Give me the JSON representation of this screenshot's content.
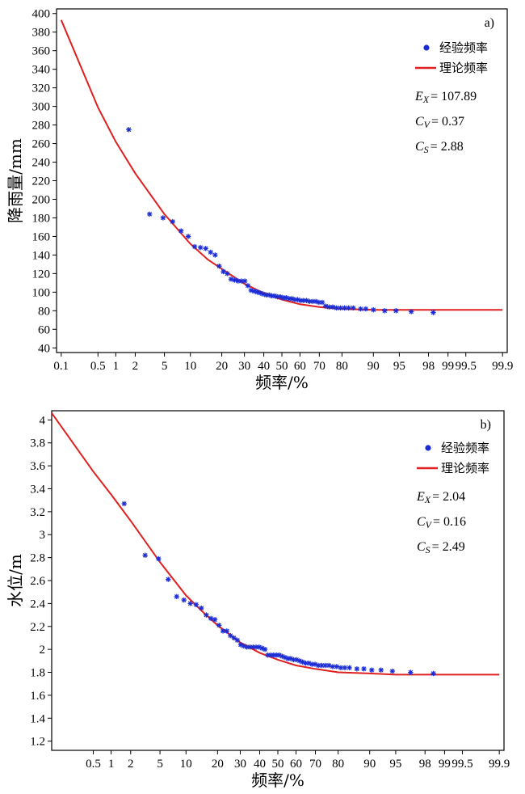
{
  "chart_data": [
    {
      "type": "scatter",
      "panel_label": "a)",
      "xscale": "probability",
      "x_ticks": [
        0.1,
        0.5,
        1,
        2,
        5,
        10,
        20,
        30,
        40,
        50,
        60,
        70,
        80,
        90,
        95,
        98,
        99,
        99.5,
        99.9
      ],
      "x_tick_labels": [
        "0.1",
        "0.5",
        "1",
        "2",
        "5",
        "10",
        "20",
        "30",
        "40",
        "50",
        "60",
        "70",
        "80",
        "90",
        "95",
        "98",
        "99",
        "99.5",
        "99.9"
      ],
      "xlim": [
        0.08,
        99.92
      ],
      "xlabel": "频率/%",
      "ylabel": "降雨量/mm",
      "ylim": [
        35,
        405
      ],
      "y_ticks": [
        40,
        60,
        80,
        100,
        120,
        140,
        160,
        180,
        200,
        220,
        240,
        260,
        280,
        300,
        320,
        340,
        360,
        380,
        400
      ],
      "y_tick_labels": [
        "40",
        "60",
        "80",
        "100",
        "120",
        "140",
        "160",
        "180",
        "200",
        "220",
        "240",
        "260",
        "280",
        "300",
        "320",
        "340",
        "360",
        "380",
        "400"
      ],
      "legend": [
        {
          "label": "经验频率",
          "kind": "points",
          "color": "#1a2bd6"
        },
        {
          "label": "理论频率",
          "kind": "line",
          "color": "#e02020"
        }
      ],
      "legend_position": "top-right",
      "stats": [
        {
          "sym": "E",
          "sub": "X",
          "value": "= 107.89"
        },
        {
          "sym": "C",
          "sub": "V",
          "value": "= 0.37"
        },
        {
          "sym": "C",
          "sub": "S",
          "value": "= 2.88"
        }
      ],
      "series": [
        {
          "name": "经验频率",
          "kind": "scatter",
          "color": "#1a2bd6",
          "x": [
            1.6,
            3.2,
            4.8,
            6.3,
            7.9,
            9.5,
            11.1,
            12.7,
            14.3,
            15.9,
            17.5,
            19.0,
            20.6,
            22.2,
            23.8,
            25.4,
            27.0,
            28.6,
            30.2,
            31.7,
            33.3,
            34.9,
            36.5,
            38.1,
            39.7,
            41.3,
            42.9,
            44.4,
            46.0,
            47.6,
            49.2,
            50.8,
            52.4,
            54.0,
            55.6,
            57.1,
            58.7,
            60.3,
            61.9,
            63.5,
            65.1,
            66.7,
            68.3,
            69.8,
            71.4,
            73.0,
            74.6,
            76.2,
            77.8,
            79.4,
            81.0,
            82.5,
            84.1,
            86.5,
            88.0,
            90.0,
            92.5,
            94.5,
            96.5,
            98.3
          ],
          "y": [
            275,
            184,
            180,
            176,
            166,
            160,
            149,
            148,
            147,
            143,
            140,
            128,
            122,
            120,
            114,
            113,
            112,
            112,
            112,
            107,
            102,
            101,
            100,
            99,
            98,
            97,
            97,
            96,
            96,
            95,
            95,
            94,
            94,
            93,
            93,
            92,
            92,
            91,
            91,
            91,
            90,
            90,
            90,
            89,
            89,
            85,
            84,
            84,
            83,
            83,
            83,
            83,
            83,
            82,
            82,
            81,
            80,
            80,
            79,
            78
          ]
        },
        {
          "name": "理论频率",
          "kind": "line",
          "color": "#e02020",
          "x": [
            0.1,
            0.5,
            1,
            2,
            5,
            10,
            15,
            20,
            30,
            40,
            50,
            60,
            70,
            80,
            90,
            95,
            99,
            99.9
          ],
          "y": [
            393,
            299,
            262,
            228,
            184,
            152,
            135,
            125,
            109,
            99,
            92,
            87,
            84,
            82,
            81,
            81,
            81,
            81
          ]
        }
      ]
    },
    {
      "type": "scatter",
      "panel_label": "b)",
      "xscale": "probability",
      "x_ticks": [
        0.5,
        1,
        2,
        5,
        10,
        20,
        30,
        40,
        50,
        60,
        70,
        80,
        90,
        95,
        98,
        99,
        99.5,
        99.9
      ],
      "x_tick_labels": [
        "0.5",
        "1",
        "2",
        "5",
        "10",
        "20",
        "30",
        "40",
        "50",
        "60",
        "70",
        "80",
        "90",
        "95",
        "98",
        "99",
        "99.5",
        "99.9"
      ],
      "xlim": [
        0.08,
        99.92
      ],
      "xlabel": "频率/%",
      "ylabel": "水位/m",
      "ylim": [
        1.12,
        4.08
      ],
      "y_ticks": [
        1.2,
        1.4,
        1.6,
        1.8,
        2.0,
        2.2,
        2.4,
        2.6,
        2.8,
        3.0,
        3.2,
        3.4,
        3.6,
        3.8,
        4.0
      ],
      "y_tick_labels": [
        "1.2",
        "1.4",
        "1.6",
        "1.8",
        "2",
        "2.2",
        "2.4",
        "2.6",
        "2.8",
        "3",
        "3.2",
        "3.4",
        "3.6",
        "3.8",
        "4"
      ],
      "legend": [
        {
          "label": "经验频率",
          "kind": "points",
          "color": "#1a2bd6"
        },
        {
          "label": "理论频率",
          "kind": "line",
          "color": "#e02020"
        }
      ],
      "legend_position": "top-right",
      "stats": [
        {
          "sym": "E",
          "sub": "X",
          "value": "= 2.04"
        },
        {
          "sym": "C",
          "sub": "V",
          "value": "= 0.16"
        },
        {
          "sym": "C",
          "sub": "S",
          "value": "= 2.49"
        }
      ],
      "series": [
        {
          "name": "经验频率",
          "kind": "scatter",
          "color": "#1a2bd6",
          "x": [
            1.6,
            3.2,
            4.8,
            6.3,
            7.9,
            9.5,
            11.1,
            12.7,
            14.3,
            15.9,
            17.5,
            19.0,
            20.6,
            22.2,
            23.8,
            25.4,
            27.0,
            28.6,
            30.2,
            31.7,
            33.3,
            34.9,
            36.5,
            38.1,
            39.7,
            41.3,
            42.9,
            44.4,
            46.0,
            47.6,
            49.2,
            50.8,
            52.4,
            54.0,
            55.6,
            57.1,
            58.7,
            60.3,
            61.9,
            63.5,
            65.1,
            66.7,
            68.3,
            69.8,
            71.4,
            73.0,
            74.6,
            76.2,
            77.8,
            79.4,
            81.0,
            82.5,
            84.1,
            86.5,
            88.5,
            90.5,
            92.5,
            94.5,
            96.8,
            98.5
          ],
          "y": [
            3.27,
            2.82,
            2.79,
            2.61,
            2.46,
            2.43,
            2.4,
            2.39,
            2.36,
            2.3,
            2.27,
            2.26,
            2.21,
            2.16,
            2.16,
            2.12,
            2.1,
            2.08,
            2.04,
            2.03,
            2.02,
            2.02,
            2.02,
            2.02,
            2.02,
            2.01,
            2.0,
            1.95,
            1.95,
            1.95,
            1.95,
            1.95,
            1.94,
            1.93,
            1.92,
            1.92,
            1.91,
            1.91,
            1.9,
            1.89,
            1.88,
            1.88,
            1.87,
            1.87,
            1.86,
            1.86,
            1.86,
            1.86,
            1.85,
            1.85,
            1.84,
            1.84,
            1.84,
            1.83,
            1.83,
            1.82,
            1.82,
            1.81,
            1.8,
            1.79
          ]
        },
        {
          "name": "理论频率",
          "kind": "line",
          "color": "#e02020",
          "x": [
            0.08,
            0.5,
            1,
            2,
            5,
            10,
            15,
            20,
            30,
            40,
            50,
            60,
            70,
            80,
            90,
            95,
            99,
            99.9
          ],
          "y": [
            4.06,
            3.55,
            3.35,
            3.12,
            2.76,
            2.47,
            2.32,
            2.21,
            2.06,
            1.97,
            1.91,
            1.86,
            1.83,
            1.8,
            1.79,
            1.78,
            1.78,
            1.78
          ]
        }
      ]
    }
  ]
}
